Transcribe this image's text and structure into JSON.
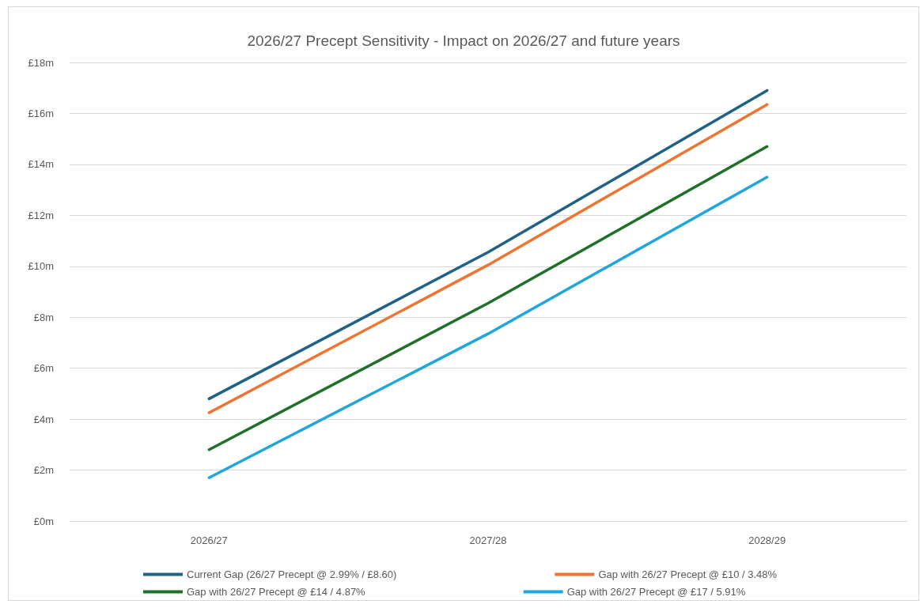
{
  "chart_data": {
    "type": "line",
    "title": "2026/27 Precept Sensitivity - Impact on 2026/27 and future years",
    "categories": [
      "2026/27",
      "2027/28",
      "2028/29"
    ],
    "series": [
      {
        "name": "Current Gap (26/27 Precept @ 2.99% / £8.60)",
        "color": "#1f6284",
        "values": [
          4.8,
          10.55,
          16.9
        ]
      },
      {
        "name": "Gap with 26/27 Precept @ £10 / 3.48%",
        "color": "#ed7431",
        "values": [
          4.25,
          10.05,
          16.35
        ]
      },
      {
        "name": "Gap with 26/27 Precept @ £14 / 4.87%",
        "color": "#1f7028",
        "values": [
          2.8,
          8.55,
          14.7
        ]
      },
      {
        "name": "Gap with 26/27 Precept @ £17 / 5.91%",
        "color": "#1ea6dd",
        "values": [
          1.7,
          7.35,
          13.5
        ]
      }
    ],
    "ylim": [
      0,
      18
    ],
    "yticks": [
      {
        "value": 0,
        "label": "£0m"
      },
      {
        "value": 2,
        "label": "£2m"
      },
      {
        "value": 4,
        "label": "£4m"
      },
      {
        "value": 6,
        "label": "£6m"
      },
      {
        "value": 8,
        "label": "£8m"
      },
      {
        "value": 10,
        "label": "£10m"
      },
      {
        "value": 12,
        "label": "£12m"
      },
      {
        "value": 14,
        "label": "£14m"
      },
      {
        "value": 16,
        "label": "£16m"
      },
      {
        "value": 18,
        "label": "£18m"
      }
    ],
    "grid": "y",
    "legend": "bottom",
    "marker": "none",
    "line_style": "solid"
  }
}
